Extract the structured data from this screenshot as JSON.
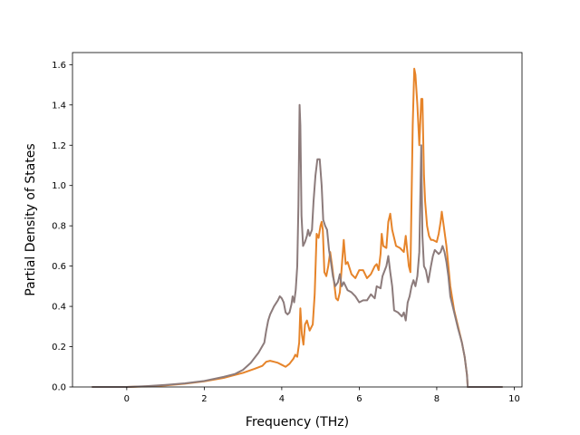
{
  "chart_data": {
    "type": "line",
    "title": "",
    "xlabel": "Frequency (THz)",
    "ylabel": "Partial Density of States",
    "xlim": [
      -1.4,
      10.2
    ],
    "ylim": [
      0.0,
      1.66
    ],
    "xticks": [
      0,
      2,
      4,
      6,
      8,
      10
    ],
    "yticks": [
      0.0,
      0.2,
      0.4,
      0.6,
      0.8,
      1.0,
      1.2,
      1.4,
      1.6
    ],
    "xtick_labels": [
      "0",
      "2",
      "4",
      "6",
      "8",
      "10"
    ],
    "ytick_labels": [
      "0.0",
      "0.2",
      "0.4",
      "0.6",
      "0.8",
      "1.0",
      "1.2",
      "1.4",
      "1.6"
    ],
    "grid": false,
    "series": [
      {
        "color": "#e6842a",
        "points": [
          [
            -0.9,
            0.0
          ],
          [
            0.0,
            0.0
          ],
          [
            0.5,
            0.003
          ],
          [
            1.0,
            0.008
          ],
          [
            1.5,
            0.016
          ],
          [
            2.0,
            0.028
          ],
          [
            2.5,
            0.045
          ],
          [
            3.0,
            0.07
          ],
          [
            3.3,
            0.09
          ],
          [
            3.5,
            0.105
          ],
          [
            3.6,
            0.125
          ],
          [
            3.7,
            0.13
          ],
          [
            3.8,
            0.125
          ],
          [
            3.9,
            0.12
          ],
          [
            4.0,
            0.11
          ],
          [
            4.1,
            0.1
          ],
          [
            4.2,
            0.115
          ],
          [
            4.3,
            0.14
          ],
          [
            4.35,
            0.16
          ],
          [
            4.4,
            0.15
          ],
          [
            4.45,
            0.22
          ],
          [
            4.48,
            0.39
          ],
          [
            4.52,
            0.26
          ],
          [
            4.56,
            0.21
          ],
          [
            4.6,
            0.31
          ],
          [
            4.65,
            0.33
          ],
          [
            4.72,
            0.28
          ],
          [
            4.8,
            0.31
          ],
          [
            4.85,
            0.46
          ],
          [
            4.9,
            0.76
          ],
          [
            4.95,
            0.74
          ],
          [
            5.0,
            0.8
          ],
          [
            5.03,
            0.82
          ],
          [
            5.06,
            0.78
          ],
          [
            5.1,
            0.57
          ],
          [
            5.15,
            0.55
          ],
          [
            5.2,
            0.6
          ],
          [
            5.25,
            0.67
          ],
          [
            5.3,
            0.6
          ],
          [
            5.35,
            0.52
          ],
          [
            5.4,
            0.44
          ],
          [
            5.45,
            0.43
          ],
          [
            5.5,
            0.47
          ],
          [
            5.55,
            0.6
          ],
          [
            5.6,
            0.73
          ],
          [
            5.65,
            0.61
          ],
          [
            5.7,
            0.62
          ],
          [
            5.8,
            0.56
          ],
          [
            5.9,
            0.54
          ],
          [
            6.0,
            0.58
          ],
          [
            6.1,
            0.58
          ],
          [
            6.2,
            0.54
          ],
          [
            6.3,
            0.56
          ],
          [
            6.4,
            0.6
          ],
          [
            6.45,
            0.61
          ],
          [
            6.5,
            0.58
          ],
          [
            6.55,
            0.66
          ],
          [
            6.58,
            0.76
          ],
          [
            6.62,
            0.7
          ],
          [
            6.7,
            0.69
          ],
          [
            6.75,
            0.82
          ],
          [
            6.8,
            0.86
          ],
          [
            6.85,
            0.78
          ],
          [
            6.95,
            0.7
          ],
          [
            7.05,
            0.69
          ],
          [
            7.15,
            0.67
          ],
          [
            7.2,
            0.75
          ],
          [
            7.28,
            0.6
          ],
          [
            7.32,
            0.57
          ],
          [
            7.38,
            1.3
          ],
          [
            7.42,
            1.58
          ],
          [
            7.45,
            1.55
          ],
          [
            7.5,
            1.4
          ],
          [
            7.55,
            1.2
          ],
          [
            7.6,
            1.43
          ],
          [
            7.63,
            1.43
          ],
          [
            7.67,
            1.05
          ],
          [
            7.7,
            0.92
          ],
          [
            7.75,
            0.8
          ],
          [
            7.8,
            0.75
          ],
          [
            7.85,
            0.73
          ],
          [
            7.9,
            0.73
          ],
          [
            8.0,
            0.72
          ],
          [
            8.05,
            0.76
          ],
          [
            8.1,
            0.82
          ],
          [
            8.13,
            0.87
          ],
          [
            8.18,
            0.8
          ],
          [
            8.25,
            0.7
          ],
          [
            8.35,
            0.5
          ],
          [
            8.45,
            0.38
          ],
          [
            8.55,
            0.3
          ],
          [
            8.65,
            0.22
          ],
          [
            8.72,
            0.15
          ],
          [
            8.78,
            0.06
          ],
          [
            8.8,
            0.0
          ],
          [
            9.7,
            0.0
          ]
        ]
      },
      {
        "color": "#8c7b7b",
        "points": [
          [
            -0.9,
            0.0
          ],
          [
            0.0,
            0.0
          ],
          [
            0.5,
            0.004
          ],
          [
            1.0,
            0.01
          ],
          [
            1.5,
            0.018
          ],
          [
            2.0,
            0.03
          ],
          [
            2.5,
            0.05
          ],
          [
            2.8,
            0.065
          ],
          [
            3.0,
            0.085
          ],
          [
            3.2,
            0.12
          ],
          [
            3.4,
            0.17
          ],
          [
            3.55,
            0.22
          ],
          [
            3.6,
            0.28
          ],
          [
            3.65,
            0.33
          ],
          [
            3.7,
            0.36
          ],
          [
            3.8,
            0.4
          ],
          [
            3.9,
            0.43
          ],
          [
            3.95,
            0.45
          ],
          [
            4.0,
            0.44
          ],
          [
            4.05,
            0.42
          ],
          [
            4.1,
            0.37
          ],
          [
            4.15,
            0.36
          ],
          [
            4.2,
            0.37
          ],
          [
            4.25,
            0.41
          ],
          [
            4.28,
            0.45
          ],
          [
            4.32,
            0.42
          ],
          [
            4.36,
            0.48
          ],
          [
            4.4,
            0.6
          ],
          [
            4.43,
            0.9
          ],
          [
            4.46,
            1.4
          ],
          [
            4.48,
            1.3
          ],
          [
            4.51,
            0.85
          ],
          [
            4.55,
            0.7
          ],
          [
            4.6,
            0.72
          ],
          [
            4.65,
            0.75
          ],
          [
            4.68,
            0.78
          ],
          [
            4.72,
            0.75
          ],
          [
            4.78,
            0.78
          ],
          [
            4.82,
            0.92
          ],
          [
            4.87,
            1.05
          ],
          [
            4.92,
            1.13
          ],
          [
            4.98,
            1.13
          ],
          [
            5.03,
            1.0
          ],
          [
            5.07,
            0.83
          ],
          [
            5.12,
            0.8
          ],
          [
            5.17,
            0.78
          ],
          [
            5.22,
            0.68
          ],
          [
            5.27,
            0.62
          ],
          [
            5.32,
            0.55
          ],
          [
            5.38,
            0.5
          ],
          [
            5.45,
            0.52
          ],
          [
            5.5,
            0.56
          ],
          [
            5.55,
            0.5
          ],
          [
            5.6,
            0.52
          ],
          [
            5.7,
            0.48
          ],
          [
            5.8,
            0.47
          ],
          [
            5.9,
            0.45
          ],
          [
            6.0,
            0.42
          ],
          [
            6.1,
            0.43
          ],
          [
            6.2,
            0.43
          ],
          [
            6.3,
            0.46
          ],
          [
            6.4,
            0.44
          ],
          [
            6.45,
            0.5
          ],
          [
            6.55,
            0.49
          ],
          [
            6.6,
            0.55
          ],
          [
            6.7,
            0.6
          ],
          [
            6.75,
            0.65
          ],
          [
            6.8,
            0.57
          ],
          [
            6.85,
            0.5
          ],
          [
            6.9,
            0.38
          ],
          [
            7.0,
            0.37
          ],
          [
            7.1,
            0.35
          ],
          [
            7.15,
            0.37
          ],
          [
            7.2,
            0.33
          ],
          [
            7.25,
            0.42
          ],
          [
            7.3,
            0.45
          ],
          [
            7.35,
            0.5
          ],
          [
            7.4,
            0.53
          ],
          [
            7.45,
            0.5
          ],
          [
            7.5,
            0.55
          ],
          [
            7.55,
            0.67
          ],
          [
            7.6,
            1.2
          ],
          [
            7.63,
            0.75
          ],
          [
            7.67,
            0.6
          ],
          [
            7.72,
            0.58
          ],
          [
            7.78,
            0.52
          ],
          [
            7.85,
            0.6
          ],
          [
            7.9,
            0.65
          ],
          [
            7.95,
            0.68
          ],
          [
            8.0,
            0.67
          ],
          [
            8.05,
            0.66
          ],
          [
            8.1,
            0.67
          ],
          [
            8.15,
            0.7
          ],
          [
            8.2,
            0.67
          ],
          [
            8.25,
            0.62
          ],
          [
            8.3,
            0.55
          ],
          [
            8.35,
            0.45
          ],
          [
            8.45,
            0.37
          ],
          [
            8.55,
            0.29
          ],
          [
            8.65,
            0.22
          ],
          [
            8.72,
            0.15
          ],
          [
            8.78,
            0.06
          ],
          [
            8.8,
            0.0
          ],
          [
            9.7,
            0.0
          ]
        ]
      }
    ]
  }
}
